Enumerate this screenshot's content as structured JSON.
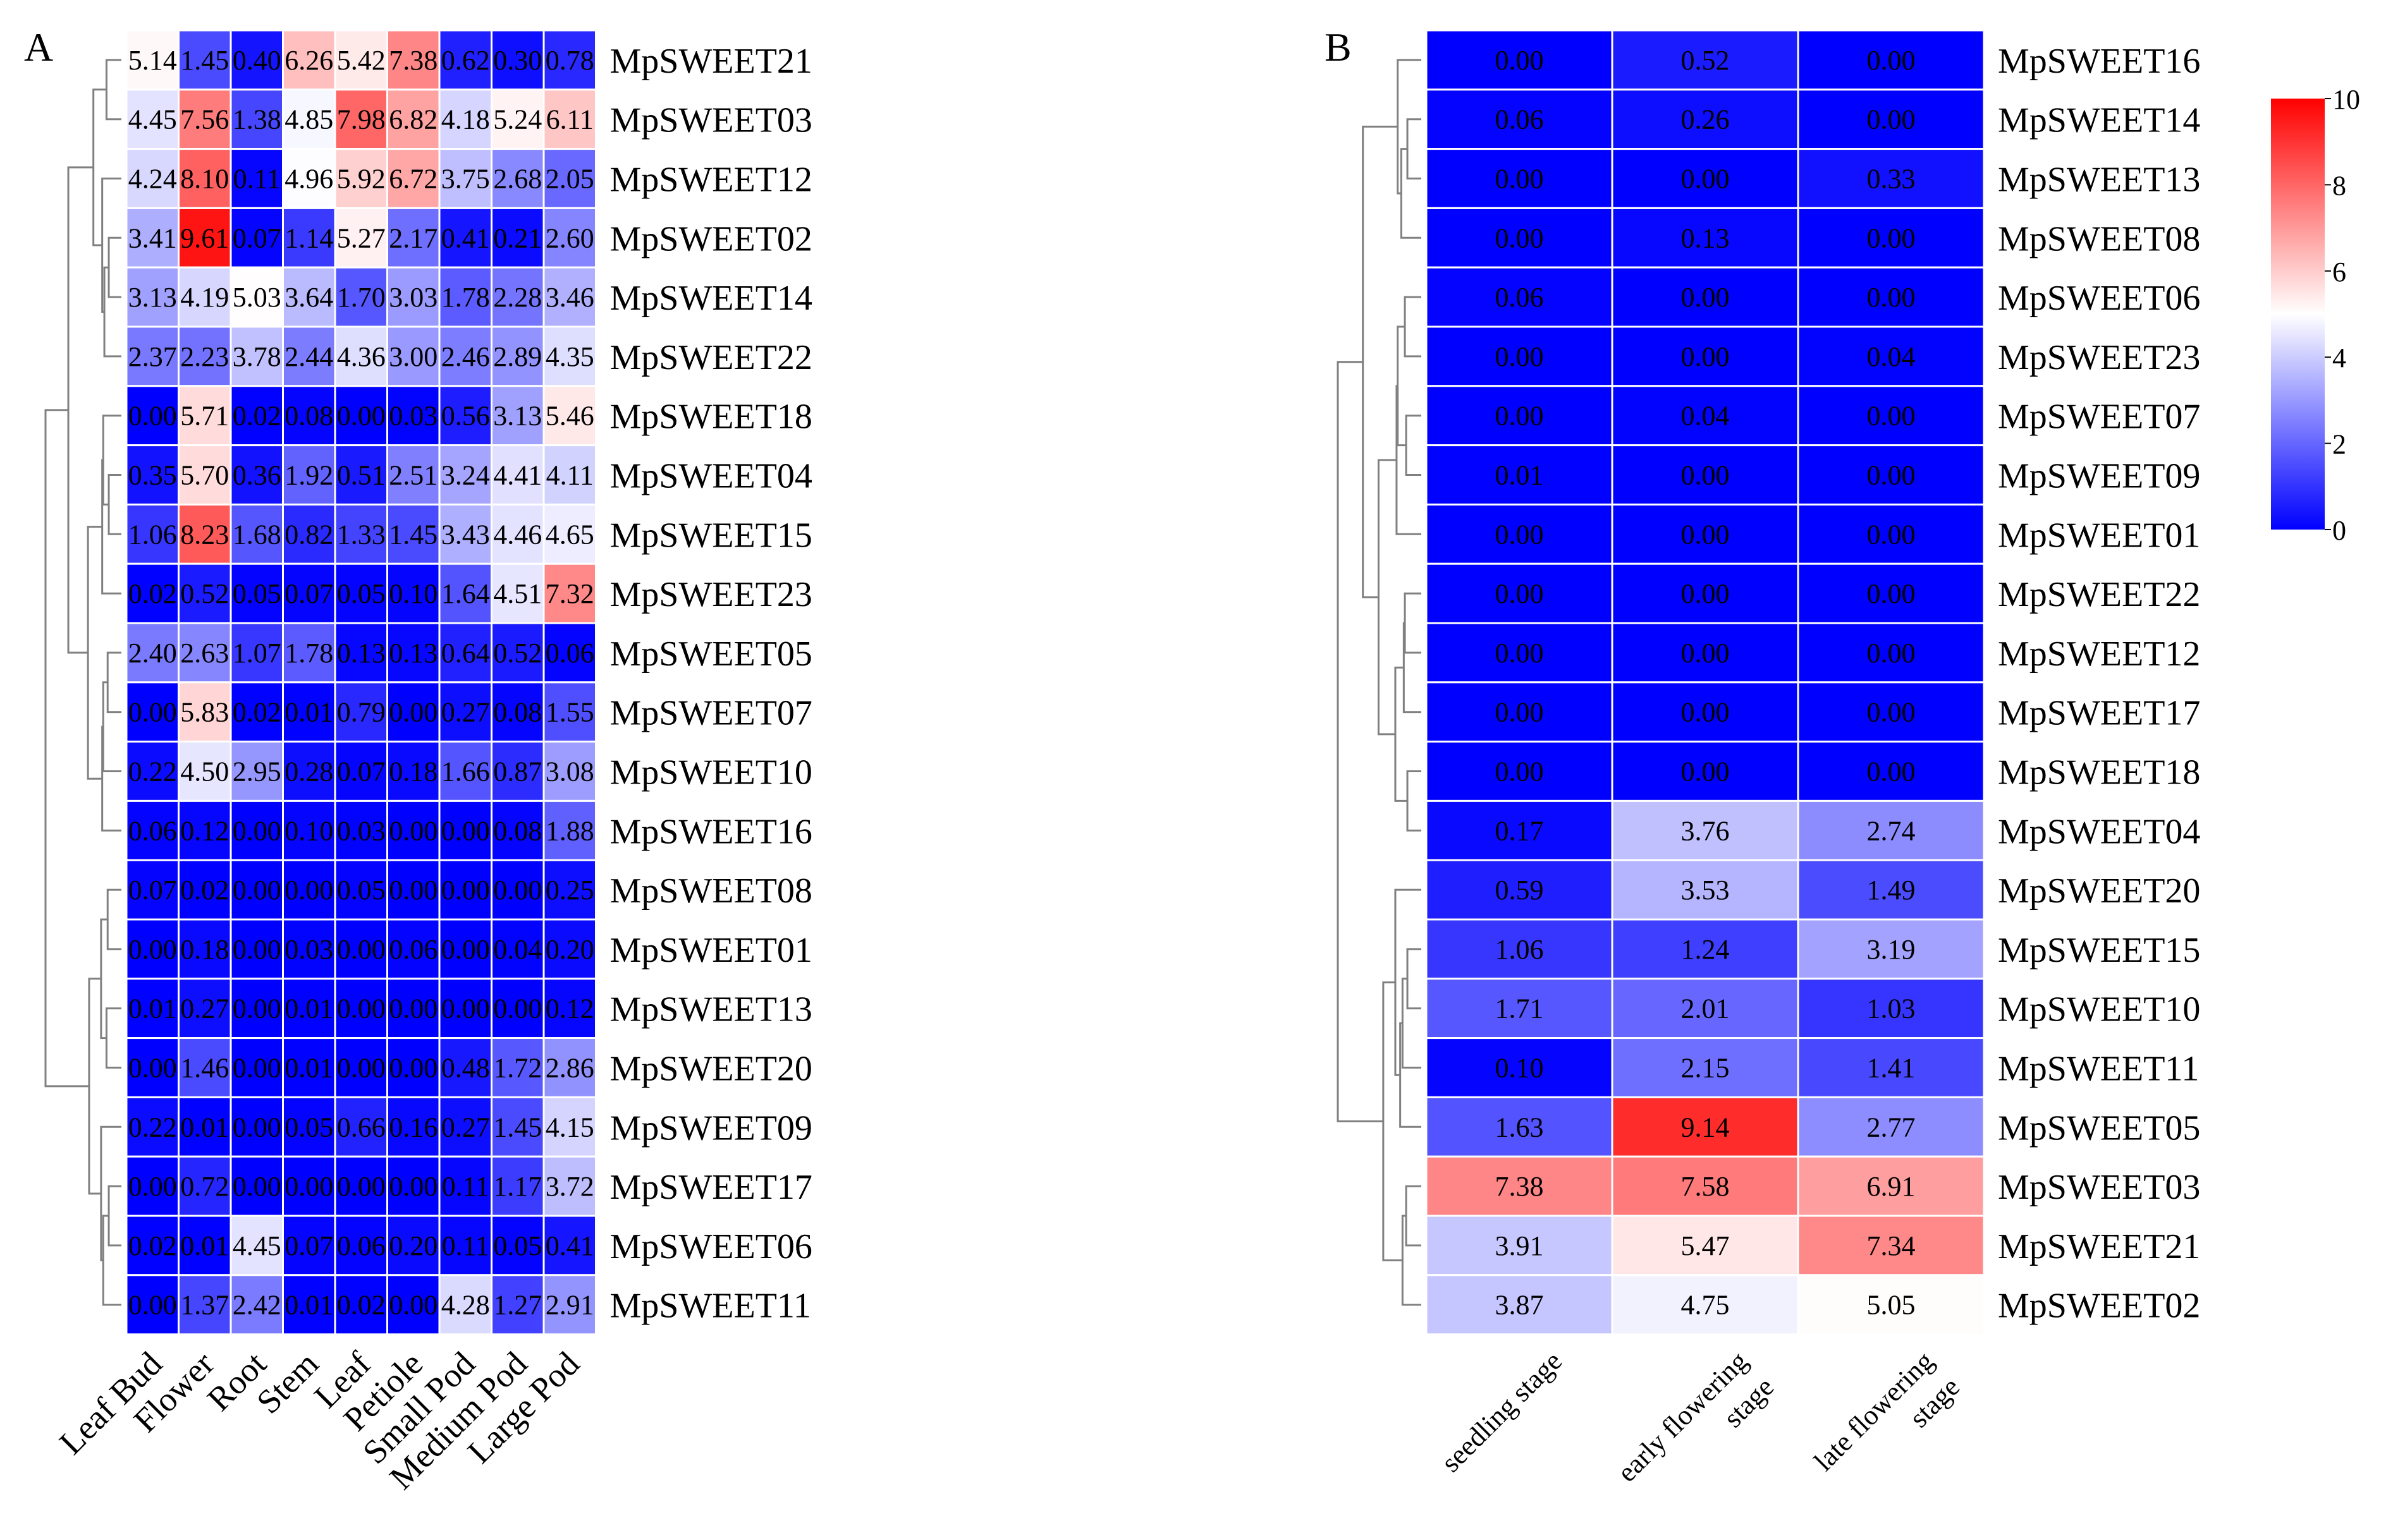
{
  "colorbar": {
    "min": 0,
    "max": 10,
    "ticks": [
      0,
      2,
      4,
      6,
      8,
      10
    ],
    "low_color": "#0000ff",
    "mid_color": "#ffffff",
    "high_color": "#ff0000",
    "mid_value": 5
  },
  "chart_data": [
    {
      "type": "heatmap",
      "panel_label": "A",
      "title": "",
      "columns": [
        "Leaf Bud",
        "Flower",
        "Root",
        "Stem",
        "Leaf",
        "Petiole",
        "Small Pod",
        "Medium Pod",
        "Large Pod"
      ],
      "rows": [
        "MpSWEET21",
        "MpSWEET03",
        "MpSWEET12",
        "MpSWEET02",
        "MpSWEET14",
        "MpSWEET22",
        "MpSWEET18",
        "MpSWEET04",
        "MpSWEET15",
        "MpSWEET23",
        "MpSWEET05",
        "MpSWEET07",
        "MpSWEET10",
        "MpSWEET16",
        "MpSWEET08",
        "MpSWEET01",
        "MpSWEET13",
        "MpSWEET20",
        "MpSWEET09",
        "MpSWEET17",
        "MpSWEET06",
        "MpSWEET11"
      ],
      "values": [
        [
          "5.14",
          "1.45",
          "0.40",
          "6.26",
          "5.42",
          "7.38",
          "0.62",
          "0.30",
          "0.78"
        ],
        [
          "4.45",
          "7.56",
          "1.38",
          "4.85",
          "7.98",
          "6.82",
          "4.18",
          "5.24",
          "6.11"
        ],
        [
          "4.24",
          "8.10",
          "0.11",
          "4.96",
          "5.92",
          "6.72",
          "3.75",
          "2.68",
          "2.05"
        ],
        [
          "3.41",
          "9.61",
          "0.07",
          "1.14",
          "5.27",
          "2.17",
          "0.41",
          "0.21",
          "2.60"
        ],
        [
          "3.13",
          "4.19",
          "5.03",
          "3.64",
          "1.70",
          "3.03",
          "1.78",
          "2.28",
          "3.46"
        ],
        [
          "2.37",
          "2.23",
          "3.78",
          "2.44",
          "4.36",
          "3.00",
          "2.46",
          "2.89",
          "4.35"
        ],
        [
          "0.00",
          "5.71",
          "0.02",
          "0.08",
          "0.00",
          "0.03",
          "0.56",
          "3.13",
          "5.46"
        ],
        [
          "0.35",
          "5.70",
          "0.36",
          "1.92",
          "0.51",
          "2.51",
          "3.24",
          "4.41",
          "4.11"
        ],
        [
          "1.06",
          "8.23",
          "1.68",
          "0.82",
          "1.33",
          "1.45",
          "3.43",
          "4.46",
          "4.65"
        ],
        [
          "0.02",
          "0.52",
          "0.05",
          "0.07",
          "0.05",
          "0.10",
          "1.64",
          "4.51",
          "7.32"
        ],
        [
          "2.40",
          "2.63",
          "1.07",
          "1.78",
          "0.13",
          "0.13",
          "0.64",
          "0.52",
          "0.06"
        ],
        [
          "0.00",
          "5.83",
          "0.02",
          "0.01",
          "0.79",
          "0.00",
          "0.27",
          "0.08",
          "1.55"
        ],
        [
          "0.22",
          "4.50",
          "2.95",
          "0.28",
          "0.07",
          "0.18",
          "1.66",
          "0.87",
          "3.08"
        ],
        [
          "0.06",
          "0.12",
          "0.00",
          "0.10",
          "0.03",
          "0.00",
          "0.00",
          "0.08",
          "1.88"
        ],
        [
          "0.07",
          "0.02",
          "0.00",
          "0.00",
          "0.05",
          "0.00",
          "0.00",
          "0.00",
          "0.25"
        ],
        [
          "0.00",
          "0.18",
          "0.00",
          "0.03",
          "0.00",
          "0.06",
          "0.00",
          "0.04",
          "0.20"
        ],
        [
          "0.01",
          "0.27",
          "0.00",
          "0.01",
          "0.00",
          "0.00",
          "0.00",
          "0.00",
          "0.12"
        ],
        [
          "0.00",
          "1.46",
          "0.00",
          "0.01",
          "0.00",
          "0.00",
          "0.48",
          "1.72",
          "2.86"
        ],
        [
          "0.22",
          "0.01",
          "0.00",
          "0.05",
          "0.66",
          "0.16",
          "0.27",
          "1.45",
          "4.15"
        ],
        [
          "0.00",
          "0.72",
          "0.00",
          "0.00",
          "0.00",
          "0.00",
          "0.11",
          "1.17",
          "3.72"
        ],
        [
          "0.02",
          "0.01",
          "4.45",
          "0.07",
          "0.06",
          "0.20",
          "0.11",
          "0.05",
          "0.41"
        ],
        [
          "0.00",
          "1.37",
          "2.42",
          "0.01",
          "0.02",
          "0.00",
          "4.28",
          "1.27",
          "2.91"
        ]
      ]
    },
    {
      "type": "heatmap",
      "panel_label": "B",
      "title": "",
      "columns": [
        [
          "seedling stage"
        ],
        [
          "early flowering",
          "stage"
        ],
        [
          "late flowering",
          "stage"
        ]
      ],
      "rows": [
        "MpSWEET16",
        "MpSWEET14",
        "MpSWEET13",
        "MpSWEET08",
        "MpSWEET06",
        "MpSWEET23",
        "MpSWEET07",
        "MpSWEET09",
        "MpSWEET01",
        "MpSWEET22",
        "MpSWEET12",
        "MpSWEET17",
        "MpSWEET18",
        "MpSWEET04",
        "MpSWEET20",
        "MpSWEET15",
        "MpSWEET10",
        "MpSWEET11",
        "MpSWEET05",
        "MpSWEET03",
        "MpSWEET21",
        "MpSWEET02"
      ],
      "values": [
        [
          "0.00",
          "0.52",
          "0.00"
        ],
        [
          "0.06",
          "0.26",
          "0.00"
        ],
        [
          "0.00",
          "0.00",
          "0.33"
        ],
        [
          "0.00",
          "0.13",
          "0.00"
        ],
        [
          "0.06",
          "0.00",
          "0.00"
        ],
        [
          "0.00",
          "0.00",
          "0.04"
        ],
        [
          "0.00",
          "0.04",
          "0.00"
        ],
        [
          "0.01",
          "0.00",
          "0.00"
        ],
        [
          "0.00",
          "0.00",
          "0.00"
        ],
        [
          "0.00",
          "0.00",
          "0.00"
        ],
        [
          "0.00",
          "0.00",
          "0.00"
        ],
        [
          "0.00",
          "0.00",
          "0.00"
        ],
        [
          "0.00",
          "0.00",
          "0.00"
        ],
        [
          "0.17",
          "3.76",
          "2.74"
        ],
        [
          "0.59",
          "3.53",
          "1.49"
        ],
        [
          "1.06",
          "1.24",
          "3.19"
        ],
        [
          "1.71",
          "2.01",
          "1.03"
        ],
        [
          "0.10",
          "2.15",
          "1.41"
        ],
        [
          "1.63",
          "9.14",
          "2.77"
        ],
        [
          "7.38",
          "7.58",
          "6.91"
        ],
        [
          "3.91",
          "5.47",
          "7.34"
        ],
        [
          "3.87",
          "4.75",
          "5.05"
        ]
      ]
    }
  ]
}
